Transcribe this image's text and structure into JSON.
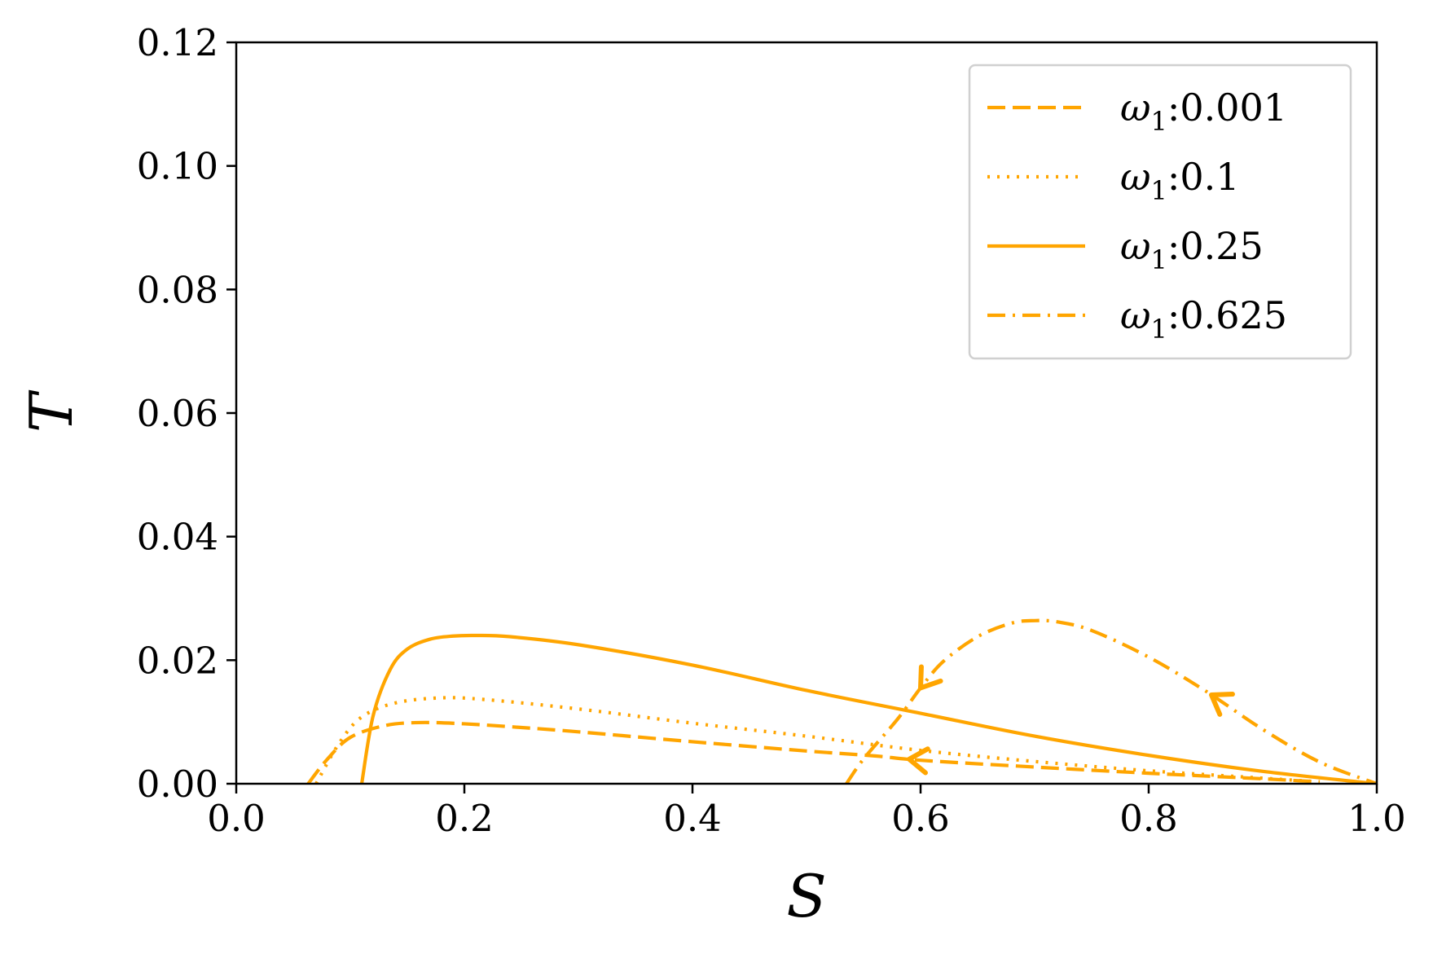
{
  "chart_data": {
    "type": "line",
    "title": "",
    "xlabel": "S",
    "ylabel": "T",
    "xlim": [
      0.0,
      1.0
    ],
    "ylim": [
      0.0,
      0.12
    ],
    "x_ticks": [
      "0.0",
      "0.2",
      "0.4",
      "0.6",
      "0.8",
      "1.0"
    ],
    "y_ticks": [
      "0.00",
      "0.02",
      "0.04",
      "0.06",
      "0.08",
      "0.10",
      "0.12"
    ],
    "grid": false,
    "legend_position": "top-right",
    "line_color": "#FFA500",
    "series": [
      {
        "name": "ω1:0.001",
        "legend_symbol": "ω",
        "legend_subscript": "1",
        "legend_value": ":0.001",
        "style": "dashed",
        "x": [
          0.063,
          0.08,
          0.1,
          0.13,
          0.16,
          0.2,
          0.25,
          0.3,
          0.4,
          0.5,
          0.56,
          0.6,
          0.7,
          0.8,
          0.9,
          0.95
        ],
        "y": [
          0.0,
          0.004,
          0.0075,
          0.0094,
          0.0099,
          0.0097,
          0.0091,
          0.0084,
          0.0068,
          0.0053,
          0.0045,
          0.0038,
          0.0027,
          0.0017,
          0.0008,
          0.0003
        ],
        "arrows_at": [
          0.59
        ]
      },
      {
        "name": "ω1:0.1",
        "legend_symbol": "ω",
        "legend_subscript": "1",
        "legend_value": ":0.1",
        "style": "dotted",
        "x": [
          0.07,
          0.09,
          0.11,
          0.14,
          0.18,
          0.22,
          0.3,
          0.4,
          0.5,
          0.6,
          0.7,
          0.8,
          0.9,
          0.95
        ],
        "y": [
          0.0,
          0.0065,
          0.0108,
          0.0131,
          0.0139,
          0.0136,
          0.0121,
          0.0098,
          0.0077,
          0.0054,
          0.0036,
          0.0021,
          0.0009,
          0.0003
        ]
      },
      {
        "name": "ω1:0.25",
        "legend_symbol": "ω",
        "legend_subscript": "1",
        "legend_value": ":0.25",
        "style": "solid",
        "x": [
          0.11,
          0.12,
          0.135,
          0.15,
          0.17,
          0.19,
          0.21,
          0.24,
          0.3,
          0.4,
          0.5,
          0.6,
          0.7,
          0.8,
          0.9,
          1.0
        ],
        "y": [
          0.0,
          0.011,
          0.0185,
          0.0218,
          0.0234,
          0.0239,
          0.024,
          0.0238,
          0.0225,
          0.0192,
          0.0151,
          0.0114,
          0.0077,
          0.0046,
          0.002,
          0.0
        ]
      },
      {
        "name": "ω1:0.625",
        "legend_symbol": "ω",
        "legend_subscript": "1",
        "legend_value": ":0.625",
        "style": "dashdot",
        "x": [
          0.535,
          0.55,
          0.58,
          0.6,
          0.62,
          0.65,
          0.68,
          0.7,
          0.72,
          0.75,
          0.8,
          0.85,
          0.9,
          0.95,
          1.0
        ],
        "y": [
          0.0,
          0.004,
          0.0105,
          0.0155,
          0.0198,
          0.0238,
          0.026,
          0.0264,
          0.0262,
          0.0248,
          0.0205,
          0.015,
          0.0088,
          0.0035,
          0.0
        ],
        "arrows_at": [
          0.855,
          0.6
        ]
      }
    ]
  }
}
